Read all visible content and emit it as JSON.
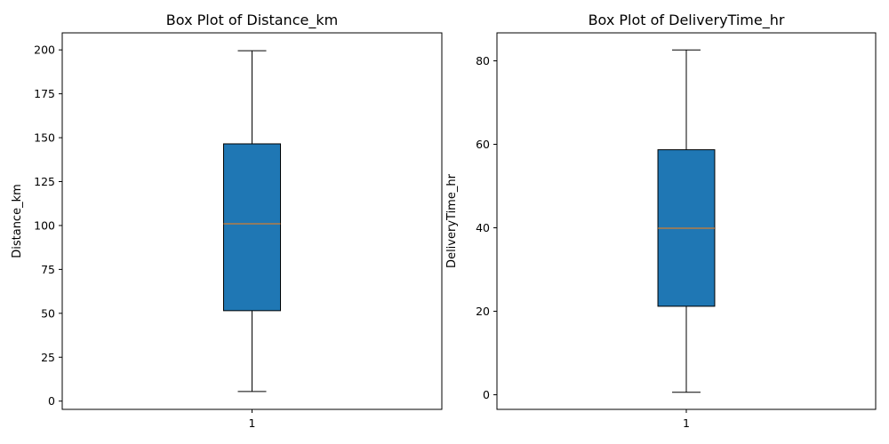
{
  "chart_data": [
    {
      "type": "box",
      "title": "Box Plot of Distance_km",
      "xlabel": "",
      "ylabel": "Distance_km",
      "categories": [
        "1"
      ],
      "ylim": [
        -4.7,
        209.7
      ],
      "yticks": [
        0,
        25,
        50,
        75,
        100,
        125,
        150,
        175,
        200
      ],
      "box": {
        "whisker_low": 5.5,
        "q1": 51.5,
        "median": 101.0,
        "q3": 146.5,
        "whisker_high": 199.5
      },
      "grid": false,
      "box_color": "#1f77b4",
      "median_color": "#ff7f0e"
    },
    {
      "type": "box",
      "title": "Box Plot of DeliveryTime_hr",
      "xlabel": "",
      "ylabel": "DeliveryTime_hr",
      "categories": [
        "1"
      ],
      "ylim": [
        -3.5,
        86.7
      ],
      "yticks": [
        0,
        20,
        40,
        60,
        80
      ],
      "box": {
        "whisker_low": 0.6,
        "q1": 21.2,
        "median": 39.9,
        "q3": 58.7,
        "whisker_high": 82.6
      },
      "grid": false,
      "box_color": "#1f77b4",
      "median_color": "#ff7f0e"
    }
  ]
}
